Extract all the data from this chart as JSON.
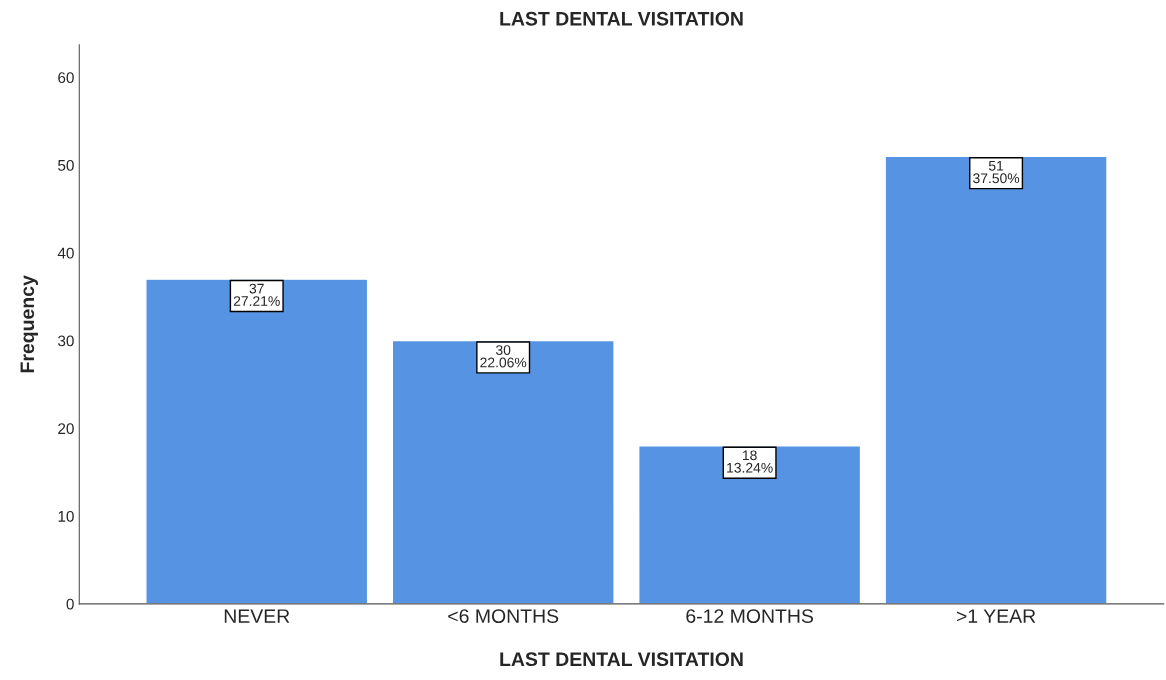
{
  "chart_data": {
    "type": "bar",
    "title": "LAST DENTAL VISITATION",
    "xlabel": "LAST DENTAL VISITATION",
    "ylabel": "Frequency",
    "categories": [
      "NEVER",
      "<6 MONTHS",
      "6-12 MONTHS",
      ">1 YEAR"
    ],
    "values": [
      37,
      30,
      18,
      51
    ],
    "value_labels": [
      "37\n27.21%",
      "30\n22.06%",
      "18\n13.24%",
      "51\n37.50%"
    ],
    "color": "#5694e3",
    "ylim": [
      0,
      63.7
    ],
    "yticks": [
      0,
      10,
      20,
      30,
      40,
      50,
      60
    ],
    "grid": false,
    "legend": false
  }
}
